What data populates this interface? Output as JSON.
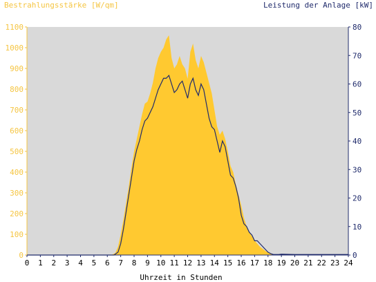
{
  "chart_data": {
    "type": "area",
    "y_left_label": "Bestrahlungsstärke [W/qm]",
    "y_right_label": "Leistung der Anlage [kW]",
    "xlabel": "Uhrzeit in Stunden",
    "xlim": [
      0,
      24
    ],
    "ylim_left": [
      0,
      1100
    ],
    "ylim_right": [
      0,
      80
    ],
    "x_ticks": [
      "0",
      "1",
      "2",
      "3",
      "4",
      "5",
      "6",
      "7",
      "8",
      "9",
      "10",
      "11",
      "12",
      "13",
      "14",
      "15",
      "16",
      "17",
      "18",
      "19",
      "20",
      "21",
      "22",
      "23",
      "24"
    ],
    "y_left_ticks": [
      "0",
      "100",
      "200",
      "300",
      "400",
      "500",
      "600",
      "700",
      "800",
      "900",
      "1000",
      "1100"
    ],
    "y_right_ticks": [
      "0",
      "10",
      "20",
      "30",
      "40",
      "50",
      "60",
      "70",
      "80"
    ],
    "grid": false,
    "colors": {
      "plot_bg": "#d9d9d9",
      "irradiance_fill": "#ffc930",
      "power_line": "#1f2a6b",
      "left_axis": "#f5c542",
      "right_axis": "#1f2a6b"
    },
    "series": [
      {
        "name": "Bestrahlungsstärke",
        "axis": "left",
        "x": [
          0,
          6.3,
          6.6,
          6.8,
          7.0,
          7.2,
          7.4,
          7.6,
          7.8,
          8.0,
          8.2,
          8.4,
          8.6,
          8.8,
          9.0,
          9.2,
          9.4,
          9.6,
          9.8,
          10.0,
          10.2,
          10.4,
          10.6,
          10.8,
          11.0,
          11.2,
          11.4,
          11.6,
          11.8,
          12.0,
          12.2,
          12.4,
          12.6,
          12.8,
          13.0,
          13.2,
          13.4,
          13.6,
          13.8,
          14.0,
          14.2,
          14.4,
          14.6,
          14.8,
          15.0,
          15.2,
          15.4,
          15.6,
          15.8,
          16.0,
          16.2,
          16.4,
          16.6,
          16.8,
          17.0,
          17.2,
          17.4,
          17.6,
          17.8,
          18.0,
          18.2,
          18.4,
          18.6,
          18.8,
          19.0,
          24
        ],
        "values": [
          0,
          0,
          10,
          40,
          100,
          170,
          250,
          330,
          420,
          500,
          560,
          620,
          680,
          730,
          740,
          780,
          830,
          900,
          950,
          980,
          1000,
          1040,
          1060,
          950,
          900,
          920,
          960,
          920,
          900,
          850,
          980,
          1020,
          940,
          900,
          960,
          930,
          880,
          830,
          780,
          700,
          620,
          580,
          600,
          560,
          500,
          430,
          400,
          340,
          290,
          240,
          180,
          140,
          110,
          90,
          70,
          55,
          40,
          30,
          20,
          12,
          6,
          3,
          1,
          0,
          0,
          0
        ]
      },
      {
        "name": "Leistung",
        "axis": "right",
        "x": [
          0,
          6.5,
          6.8,
          7.0,
          7.2,
          7.4,
          7.6,
          7.8,
          8.0,
          8.2,
          8.4,
          8.6,
          8.8,
          9.0,
          9.2,
          9.4,
          9.6,
          9.8,
          10.0,
          10.2,
          10.4,
          10.6,
          10.8,
          11.0,
          11.2,
          11.4,
          11.6,
          11.8,
          12.0,
          12.2,
          12.4,
          12.6,
          12.8,
          13.0,
          13.2,
          13.4,
          13.6,
          13.8,
          14.0,
          14.2,
          14.4,
          14.6,
          14.8,
          15.0,
          15.2,
          15.4,
          15.6,
          15.8,
          16.0,
          16.2,
          16.4,
          16.6,
          16.8,
          17.0,
          17.2,
          17.4,
          17.6,
          17.8,
          18.0,
          18.2,
          18.4,
          18.6,
          18.8,
          19.0,
          20.0,
          24
        ],
        "values": [
          0,
          0,
          1,
          4,
          9,
          15,
          21,
          27,
          33,
          37,
          40,
          44,
          47,
          48,
          50,
          52,
          55,
          58,
          60,
          62,
          62,
          63,
          60,
          57,
          58,
          60,
          61,
          58,
          55,
          60,
          62,
          58,
          56,
          60,
          58,
          53,
          48,
          45,
          44,
          40,
          36,
          40,
          38,
          33,
          28,
          27,
          24,
          20,
          14,
          11,
          10,
          8,
          7,
          5,
          5,
          4,
          3,
          2,
          1,
          0.5,
          0.2,
          0.2,
          0.2,
          0.3,
          0.2,
          0.2
        ]
      }
    ]
  }
}
